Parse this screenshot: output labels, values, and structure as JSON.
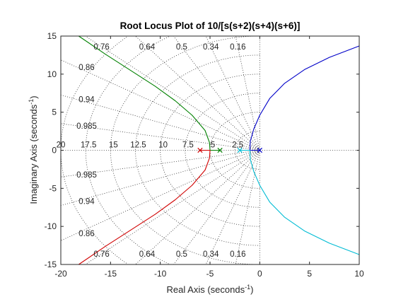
{
  "chart_data": {
    "type": "line",
    "title": "Root Locus Plot of 10/[s(s+2)(s+4)(s+6)]",
    "xlabel": "Real Axis (seconds",
    "ylabel": "Imaginary Axis (seconds",
    "label_exponent": "-1",
    "xlim": [
      -20,
      10
    ],
    "ylim": [
      -15,
      15
    ],
    "xticks": [
      "-20",
      "-15",
      "-10",
      "-5",
      "0",
      "5",
      "10"
    ],
    "yticks": [
      "-15",
      "-10",
      "-5",
      "0",
      "5",
      "10",
      "15"
    ],
    "grid": true,
    "poles": [
      0,
      -2,
      -4,
      -6
    ],
    "damping_labels": [
      "0.76",
      "0.64",
      "0.5",
      "0.34",
      "0.16",
      "0.86",
      "0.94",
      "0.985"
    ],
    "damping_values": [
      0.16,
      0.34,
      0.5,
      0.64,
      0.76,
      0.86,
      0.94,
      0.985
    ],
    "frequency_labels": [
      "20",
      "17.5",
      "15",
      "12.5",
      "10",
      "7.5",
      "5",
      "2.5"
    ],
    "frequency_values": [
      2.5,
      5,
      7.5,
      10,
      12.5,
      15,
      17.5,
      20
    ],
    "series": [
      {
        "color": "#0000c8",
        "points": [
          [
            0,
            0
          ],
          [
            -0.8,
            0
          ],
          [
            -1,
            0
          ],
          [
            -0.95,
            1.2
          ],
          [
            -0.6,
            2.8
          ],
          [
            0,
            4.6
          ],
          [
            1,
            6.8
          ],
          [
            2.5,
            8.8
          ],
          [
            4.5,
            10.6
          ],
          [
            7,
            12.2
          ],
          [
            10,
            13.7
          ]
        ]
      },
      {
        "color": "#00bcd4",
        "points": [
          [
            -2,
            0
          ],
          [
            -1.2,
            0
          ],
          [
            -1,
            0
          ],
          [
            -0.95,
            -1.2
          ],
          [
            -0.6,
            -2.8
          ],
          [
            0,
            -4.6
          ],
          [
            1,
            -6.8
          ],
          [
            2.5,
            -8.8
          ],
          [
            4.5,
            -10.6
          ],
          [
            7,
            -12.2
          ],
          [
            10,
            -13.7
          ]
        ]
      },
      {
        "color": "#008000",
        "points": [
          [
            -4,
            0
          ],
          [
            -5,
            0
          ],
          [
            -5.05,
            1.0
          ],
          [
            -5.5,
            2.6
          ],
          [
            -6.8,
            4.6
          ],
          [
            -8.5,
            6.5
          ],
          [
            -10.5,
            8.4
          ],
          [
            -13,
            10.5
          ],
          [
            -15.5,
            12.6
          ],
          [
            -18.2,
            15
          ]
        ]
      },
      {
        "color": "#d00000",
        "points": [
          [
            -6,
            0
          ],
          [
            -5,
            0
          ],
          [
            -5.05,
            -1.0
          ],
          [
            -5.5,
            -2.6
          ],
          [
            -6.8,
            -4.6
          ],
          [
            -8.5,
            -6.5
          ],
          [
            -10.5,
            -8.4
          ],
          [
            -13,
            -10.5
          ],
          [
            -15.5,
            -12.6
          ],
          [
            -18.2,
            -15
          ]
        ]
      }
    ]
  }
}
